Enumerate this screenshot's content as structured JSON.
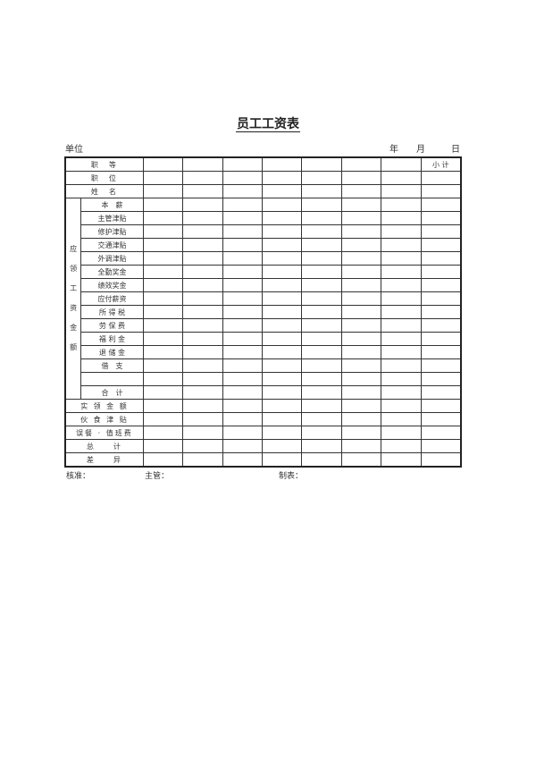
{
  "title": "员工工资表",
  "unit_label": "单位",
  "date": {
    "year": "年",
    "month": "月",
    "day": "日"
  },
  "table": {
    "data_columns": 8,
    "subtotal_label": "小 计",
    "top_rows": [
      "职　等",
      "职　位",
      "姓　名"
    ],
    "group_label": [
      "应",
      "领",
      "工",
      "资",
      "金",
      "额"
    ],
    "group_rows": [
      "本　薪",
      "主管津贴",
      "修护津贴",
      "交通津贴",
      "外调津贴",
      "全勤奖金",
      "绩效奖金",
      "应付薪资",
      "所 得 税",
      "劳 保 费",
      "福 利 金",
      "退 储 金",
      "借　支",
      "",
      "合　计"
    ],
    "bottom_rows": [
      "实 领 金 额",
      "伙 食 津 贴",
      "误餐 · 值班费",
      "总　　计",
      "差　　异"
    ]
  },
  "footer": {
    "approve": "核准：",
    "supervisor": "主管：",
    "prepared": "制表："
  }
}
